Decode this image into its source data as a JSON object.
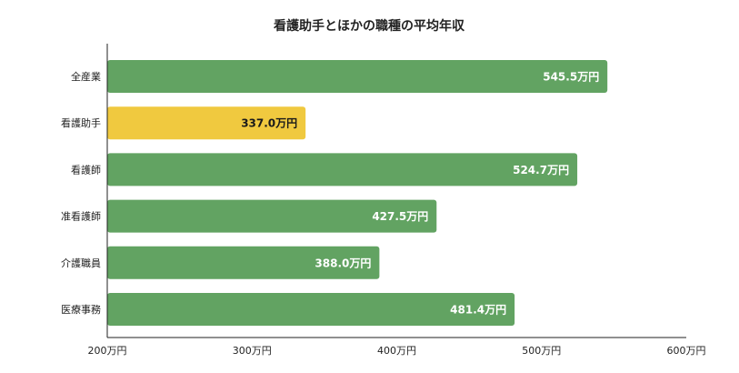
{
  "chart_data": {
    "type": "bar",
    "orientation": "horizontal",
    "title": "看護助手とほかの職種の平均年収",
    "categories": [
      "全産業",
      "看護助手",
      "看護師",
      "准看護師",
      "介護職員",
      "医療事務"
    ],
    "values": [
      545.5,
      337.0,
      524.7,
      427.5,
      388.0,
      481.4
    ],
    "value_labels": [
      "545.5万円",
      "337.0万円",
      "524.7万円",
      "427.5万円",
      "388.0万円",
      "481.4万円"
    ],
    "highlight_index": 1,
    "xlim": [
      200,
      600
    ],
    "xticks": [
      200,
      300,
      400,
      500,
      600
    ],
    "xtick_labels": [
      "200万円",
      "300万円",
      "400万円",
      "500万円",
      "600万円"
    ],
    "grid": false,
    "colors": {
      "default_bar": "#62a362",
      "highlight_bar": "#f0c93f",
      "default_label": "#ffffff",
      "highlight_label": "#1a1a1a",
      "axis": "#222222"
    }
  }
}
